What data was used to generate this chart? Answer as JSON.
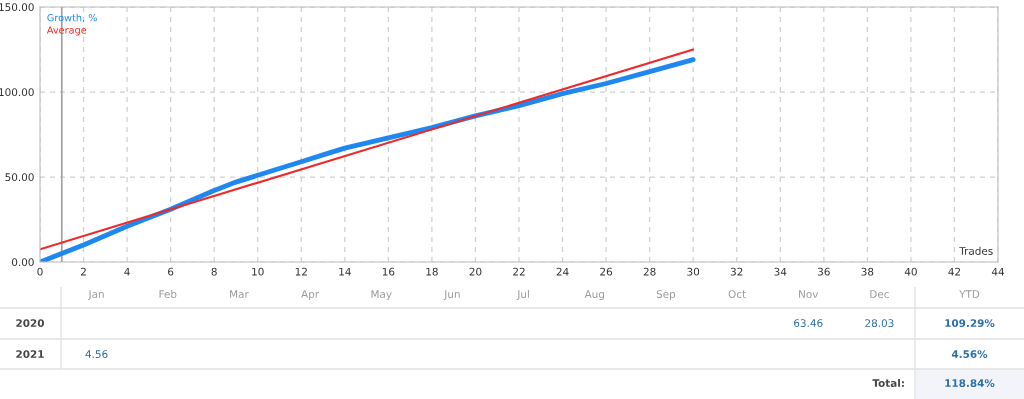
{
  "chart_data": [
    {
      "type": "line",
      "xlabel": "Trades",
      "xlim": [
        0,
        44
      ],
      "ylim": [
        0,
        150
      ],
      "xticks": [
        0,
        2,
        4,
        6,
        8,
        10,
        12,
        14,
        16,
        18,
        20,
        22,
        24,
        26,
        28,
        30,
        32,
        34,
        36,
        38,
        40,
        42,
        44
      ],
      "yticks": [
        {
          "value": 0,
          "label": "0.00"
        },
        {
          "value": 50,
          "label": "50.00"
        },
        {
          "value": 100,
          "label": "100.00"
        },
        {
          "value": 150,
          "label": "150.00"
        }
      ],
      "grid": true,
      "legend": "top left",
      "ref_lines": [
        {
          "axis": "x",
          "value": 1,
          "color": "#a0a0a0"
        }
      ],
      "series": [
        {
          "name": "Growth, %",
          "color": "#1e88f0",
          "x": [
            0,
            1,
            2,
            4,
            5,
            6,
            8,
            9,
            10,
            12,
            13,
            14,
            16,
            18,
            20,
            22,
            24,
            26,
            28,
            30
          ],
          "values": [
            0,
            5,
            10,
            21,
            26,
            31,
            42,
            47,
            51,
            59,
            63,
            67,
            73,
            79,
            86,
            92,
            99,
            105,
            112,
            119
          ]
        },
        {
          "name": "Average",
          "color": "#f02828",
          "x": [
            0,
            30
          ],
          "values": [
            7.5,
            125
          ]
        }
      ]
    },
    {
      "type": "other",
      "categories": [
        "Jan",
        "Feb",
        "Mar",
        "Apr",
        "May",
        "Jun",
        "Jul",
        "Aug",
        "Sep",
        "Oct",
        "Nov",
        "Dec",
        "YTD"
      ],
      "y_categories": [
        "2020",
        "2021"
      ],
      "cell_labels": [
        [
          null,
          null,
          null,
          null,
          null,
          null,
          null,
          null,
          null,
          null,
          "63.46",
          "28.03",
          "109.29%"
        ],
        [
          "4.56",
          null,
          null,
          null,
          null,
          null,
          null,
          null,
          null,
          null,
          null,
          null,
          "4.56%"
        ]
      ],
      "annotations": [
        "Total:",
        "118.84%"
      ]
    }
  ]
}
